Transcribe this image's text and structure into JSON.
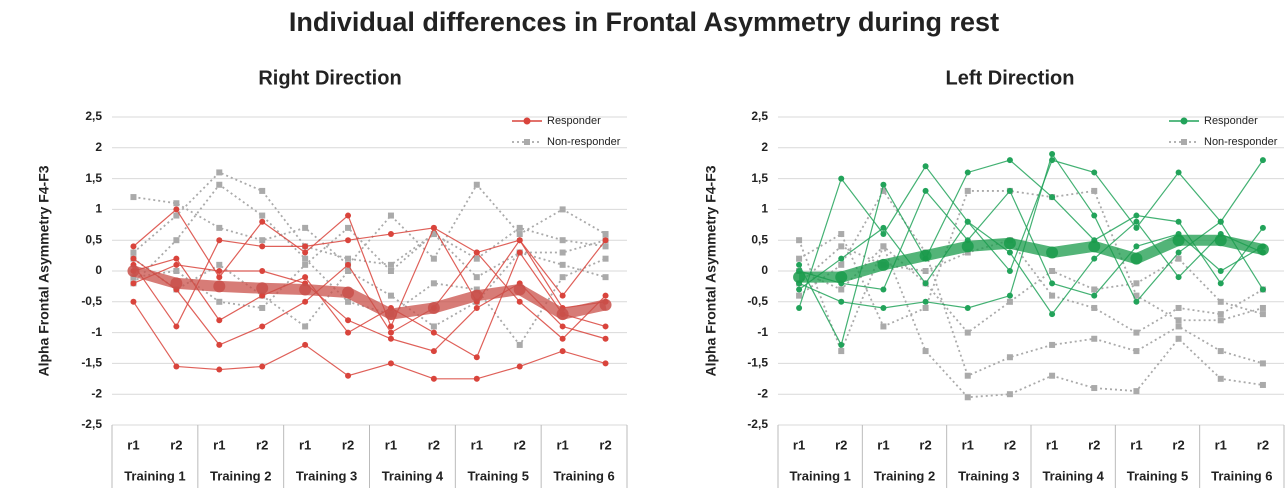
{
  "title": "Individual differences in Frontal Asymmetry during rest",
  "chart_data": [
    {
      "type": "line",
      "title": "Right Direction",
      "y_label": "Alpha Frontal Asymmetry F4-F3",
      "categories": [
        "r1",
        "r2",
        "r1",
        "r2",
        "r1",
        "r2",
        "r1",
        "r2",
        "r1",
        "r2",
        "r1",
        "r2"
      ],
      "category_groups": [
        "Training 1",
        "Training 2",
        "Training 3",
        "Training 4",
        "Training 5",
        "Training 6"
      ],
      "ylim": [
        -2.5,
        2.5
      ],
      "yticks": [
        {
          "value": -2.5,
          "label": "-2,5"
        },
        -2,
        {
          "value": -1.5,
          "label": "-1,5"
        },
        -1,
        {
          "value": -0.5,
          "label": "-0,5"
        },
        0,
        {
          "value": 0.5,
          "label": "0,5"
        },
        1,
        {
          "value": 1.5,
          "label": "1,5"
        },
        2,
        {
          "value": 2.5,
          "label": "2,5"
        }
      ],
      "grid": true,
      "legend": "upper right",
      "series": [
        {
          "name": "Responder",
          "color": "#d9443c",
          "mean_color": "#c9504a",
          "mean": [
            0,
            -0.2,
            -0.25,
            -0.28,
            -0.3,
            -0.35,
            -0.7,
            -0.6,
            -0.4,
            -0.3,
            -0.7,
            -0.55
          ],
          "lines": [
            [
              0.4,
              1.0,
              -0.1,
              0.8,
              0.3,
              0.9,
              -0.9,
              0.7,
              0.3,
              0.5,
              -0.4,
              0.5
            ],
            [
              -0.5,
              -1.55,
              -1.6,
              -1.55,
              -1.2,
              -1.7,
              -1.5,
              -1.75,
              -1.75,
              -1.55,
              -1.3,
              -1.5
            ],
            [
              0.1,
              -0.9,
              0.5,
              0.4,
              0.4,
              0.5,
              0.6,
              0.7,
              -0.5,
              0.5,
              -0.6,
              -0.5
            ],
            [
              -0.2,
              0.1,
              0,
              0,
              -0.2,
              -0.8,
              -1.1,
              -1.3,
              -0.6,
              -0.2,
              -0.9,
              -1.1
            ],
            [
              0.2,
              -0.3,
              -1.2,
              -0.9,
              -0.5,
              0.1,
              -1.0,
              -0.6,
              0.3,
              -0.5,
              -1.1,
              -0.4
            ],
            [
              0,
              0.2,
              -0.8,
              -0.4,
              -0.1,
              -1.0,
              -0.6,
              -1.0,
              -1.4,
              0.3,
              -0.7,
              -0.9
            ]
          ]
        },
        {
          "name": "Non-responder",
          "color": "#aaaaaa",
          "lines": [
            [
              1.2,
              1.1,
              0.7,
              0.5,
              0.7,
              0.1,
              0.9,
              0.2,
              1.4,
              0.6,
              1.0,
              0.6
            ],
            [
              0.3,
              0.9,
              1.6,
              1.3,
              0.4,
              0.2,
              0.1,
              0.6,
              0.2,
              0.7,
              0.5,
              0.4
            ],
            [
              -0.2,
              0.5,
              1.4,
              0.9,
              0.2,
              -0.5,
              -0.7,
              -0.2,
              -0.3,
              -1.2,
              -0.1,
              0.2
            ],
            [
              0.2,
              -0.3,
              0.1,
              -0.4,
              -0.9,
              0,
              -0.4,
              -0.9,
              -0.5,
              0.3,
              0.1,
              -0.1
            ],
            [
              -0.1,
              0,
              -0.5,
              -0.6,
              0.1,
              0.7,
              0,
              0.6,
              -0.1,
              0.3,
              0.3,
              0.5
            ]
          ]
        }
      ]
    },
    {
      "type": "line",
      "title": "Left Direction",
      "y_label": "Alpha Frontal Asymmetry F4-F3",
      "categories": [
        "r1",
        "r2",
        "r1",
        "r2",
        "r1",
        "r2",
        "r1",
        "r2",
        "r1",
        "r2",
        "r1",
        "r2"
      ],
      "category_groups": [
        "Training 1",
        "Training 2",
        "Training 3",
        "Training 4",
        "Training 5",
        "Training 6"
      ],
      "ylim": [
        -2.5,
        2.5
      ],
      "yticks": [
        {
          "value": -2.5,
          "label": "-2,5"
        },
        -2,
        {
          "value": -1.5,
          "label": "-1,5"
        },
        -1,
        {
          "value": -0.5,
          "label": "-0,5"
        },
        0,
        {
          "value": 0.5,
          "label": "0,5"
        },
        1,
        {
          "value": 1.5,
          "label": "1,5"
        },
        2,
        {
          "value": 2.5,
          "label": "2,5"
        }
      ],
      "grid": true,
      "legend": "upper right",
      "series": [
        {
          "name": "Responder",
          "color": "#22a35a",
          "mean_color": "#1a9b4b",
          "mean": [
            -0.1,
            -0.1,
            0.1,
            0.25,
            0.4,
            0.45,
            0.3,
            0.4,
            0.2,
            0.5,
            0.5,
            0.35
          ],
          "lines": [
            [
              -0.6,
              1.5,
              0.6,
              1.7,
              0.8,
              0,
              1.8,
              1.6,
              0.7,
              1.6,
              0.8,
              1.8
            ],
            [
              0.1,
              -1.2,
              1.4,
              0.2,
              1.6,
              1.8,
              1.2,
              0.5,
              0.9,
              0.8,
              -0.2,
              0.7
            ],
            [
              -0.2,
              -0.5,
              -0.6,
              -0.5,
              -0.6,
              -0.4,
              1.9,
              0.9,
              -0.5,
              0.3,
              0.8,
              -0.3
            ],
            [
              0,
              -0.2,
              -0.3,
              1.3,
              0.5,
              1.3,
              -0.2,
              -0.4,
              0.4,
              0.6,
              0,
              0.4
            ],
            [
              -0.3,
              0.2,
              0.7,
              -0.2,
              0.8,
              0.3,
              -0.7,
              0.2,
              0.8,
              -0.1,
              0.6,
              0.3
            ]
          ]
        },
        {
          "name": "Non-responder",
          "color": "#aaaaaa",
          "lines": [
            [
              0.5,
              -1.3,
              0.4,
              -1.3,
              -2.05,
              -2.0,
              -1.7,
              -1.9,
              -1.95,
              -1.1,
              -1.75,
              -1.85
            ],
            [
              0.2,
              0.6,
              -0.9,
              -0.6,
              1.3,
              1.3,
              1.2,
              1.3,
              -0.4,
              -0.8,
              -0.8,
              -0.6
            ],
            [
              -0.4,
              0.1,
              1.3,
              0.3,
              -1.7,
              -1.4,
              -1.2,
              -1.1,
              -1.3,
              -0.9,
              -1.3,
              -1.5
            ],
            [
              0,
              -0.3,
              0.4,
              -0.2,
              -1.0,
              -0.5,
              0,
              -0.3,
              -0.2,
              0.2,
              -0.5,
              -0.7
            ],
            [
              -0.2,
              0.4,
              0.1,
              0,
              0.3,
              0.5,
              -0.4,
              -0.6,
              -1.0,
              -0.6,
              -0.7,
              -0.3
            ]
          ]
        }
      ]
    }
  ]
}
